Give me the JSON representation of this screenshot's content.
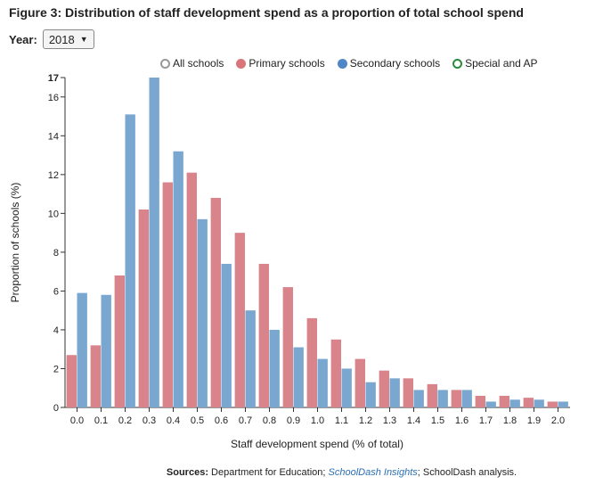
{
  "title": "Figure 3: Distribution of staff development spend as a proportion of total school spend",
  "year_selector": {
    "label": "Year:",
    "value": "2018"
  },
  "legend": [
    {
      "label": "All schools",
      "color": "#ffffff",
      "border": "#999999",
      "name": "legend-all-schools"
    },
    {
      "label": "Primary schools",
      "color": "#d9747a",
      "border": "#d9747a",
      "name": "legend-primary-schools"
    },
    {
      "label": "Secondary schools",
      "color": "#4f86c6",
      "border": "#4f86c6",
      "name": "legend-secondary-schools"
    },
    {
      "label": "Special and AP",
      "color": "#ffffff",
      "border": "#2a8a3e",
      "name": "legend-special-ap"
    }
  ],
  "source": {
    "prefix": "Sources:",
    "part1": "Department for Education;",
    "link": "SchoolDash Insights",
    "part2": "; SchoolDash analysis."
  },
  "chart_data": {
    "type": "bar",
    "xlabel": "Staff development spend (% of total)",
    "ylabel": "Proportion of schools (%)",
    "ylim": [
      0,
      17
    ],
    "y_ticks": [
      "0",
      "2",
      "4",
      "6",
      "8",
      "10",
      "12",
      "14",
      "16",
      "17"
    ],
    "y_tick_values": [
      0,
      2,
      4,
      6,
      8,
      10,
      12,
      14,
      16,
      17
    ],
    "categories": [
      "0.0",
      "0.1",
      "0.2",
      "0.3",
      "0.4",
      "0.5",
      "0.6",
      "0.7",
      "0.8",
      "0.9",
      "1.0",
      "1.1",
      "1.2",
      "1.3",
      "1.4",
      "1.5",
      "1.6",
      "1.7",
      "1.8",
      "1.9",
      "2.0"
    ],
    "series": [
      {
        "name": "Primary schools",
        "color": "#d9848a",
        "values": [
          2.7,
          3.2,
          6.8,
          10.2,
          11.6,
          12.1,
          10.8,
          9.0,
          7.4,
          6.2,
          4.6,
          3.5,
          2.5,
          1.9,
          1.5,
          1.2,
          0.9,
          0.6,
          0.6,
          0.5,
          0.3
        ]
      },
      {
        "name": "Secondary schools",
        "color": "#7aa7d0",
        "values": [
          5.9,
          5.8,
          15.1,
          17.0,
          13.2,
          9.7,
          7.4,
          5.0,
          4.0,
          3.1,
          2.5,
          2.0,
          1.3,
          1.5,
          0.9,
          0.9,
          0.9,
          0.3,
          0.4,
          0.4,
          0.3
        ]
      }
    ],
    "grid": false,
    "legend_position": "top"
  }
}
